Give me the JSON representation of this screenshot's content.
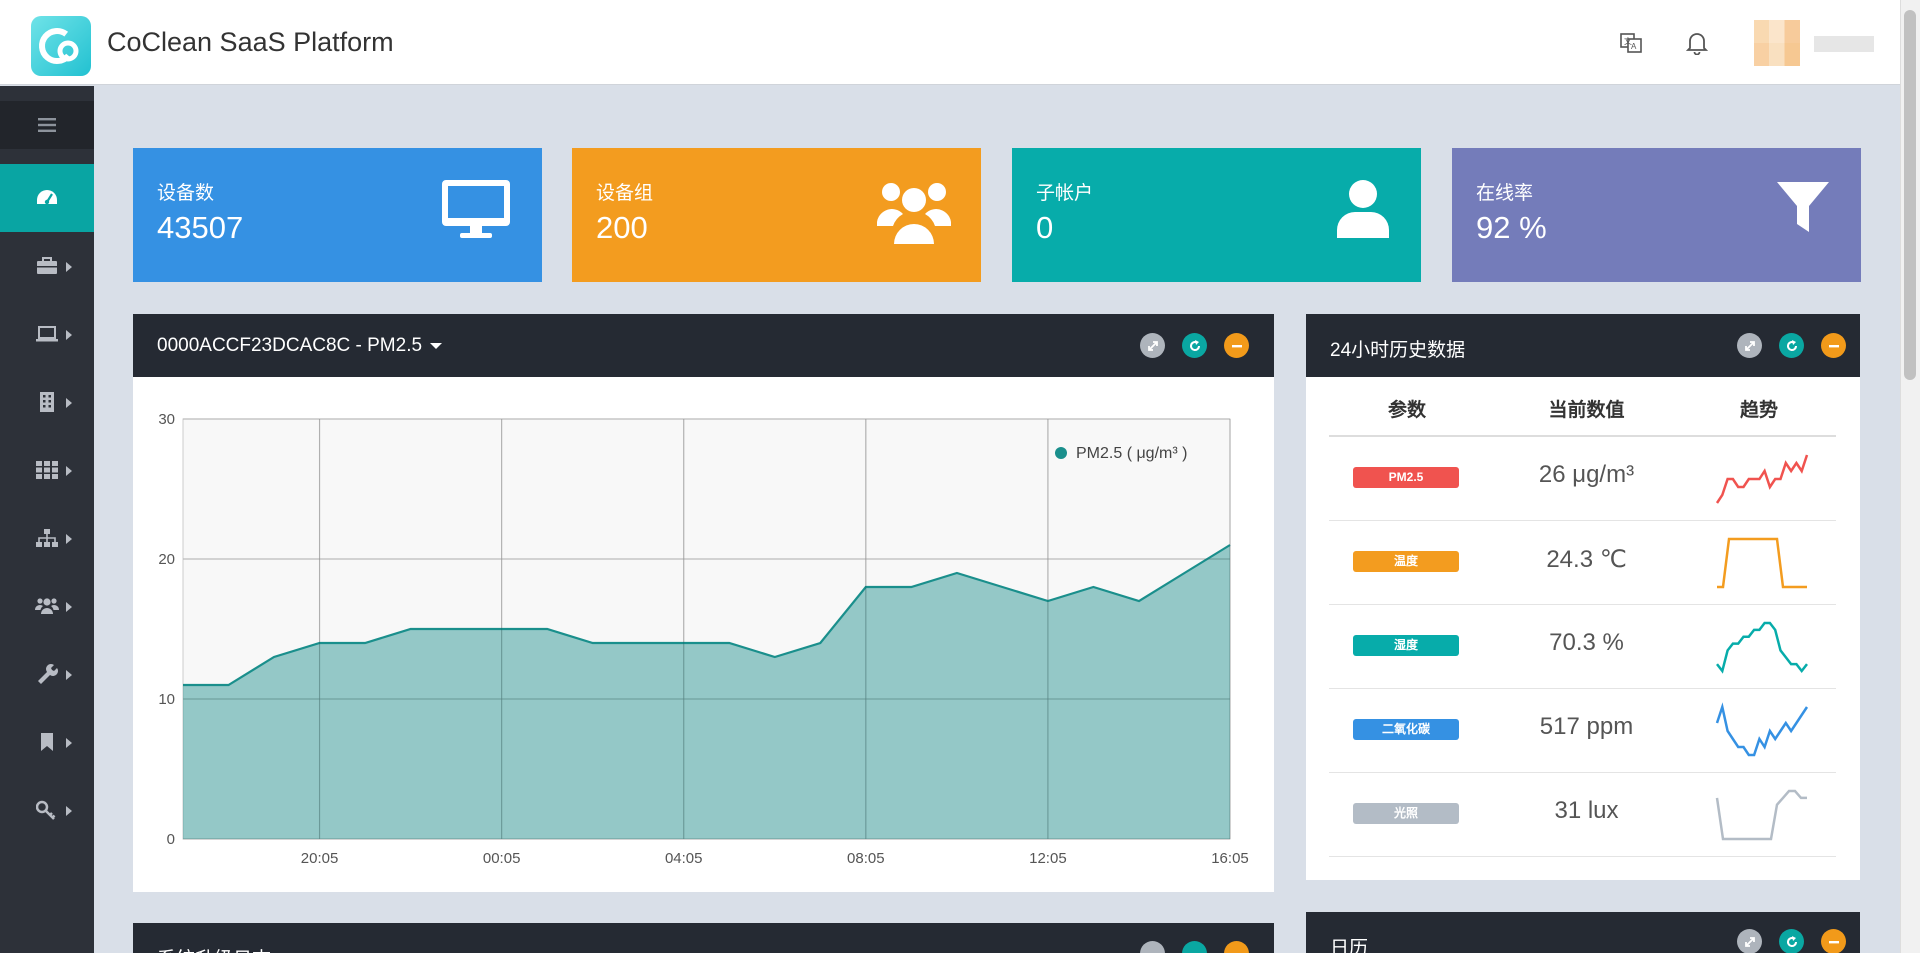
{
  "header": {
    "app_title": "CoClean SaaS Platform",
    "translate_icon": "translate-icon",
    "bell_icon": "bell-icon"
  },
  "sidebar": {
    "toggle_icon": "menu-icon",
    "items": [
      {
        "icon": "dashboard-icon",
        "active": true
      },
      {
        "icon": "briefcase-icon"
      },
      {
        "icon": "laptop-icon"
      },
      {
        "icon": "building-icon"
      },
      {
        "icon": "grid-icon"
      },
      {
        "icon": "sitemap-icon"
      },
      {
        "icon": "users-icon"
      },
      {
        "icon": "wrench-icon"
      },
      {
        "icon": "bookmark-icon"
      },
      {
        "icon": "key-icon"
      }
    ]
  },
  "stats": [
    {
      "label": "设备数",
      "value": "43507",
      "color": "#3591e3",
      "icon": "monitor-icon"
    },
    {
      "label": "设备组",
      "value": "200",
      "color": "#f39c1f",
      "icon": "users-icon"
    },
    {
      "label": "子帐户",
      "value": "0",
      "color": "#07acaa",
      "icon": "user-icon"
    },
    {
      "label": "在线率",
      "value": "92 %",
      "color": "#747cba",
      "icon": "filter-icon"
    }
  ],
  "chart_panel": {
    "title": "0000ACCF23DCAC8C - PM2.5"
  },
  "chart_data": {
    "type": "area",
    "title": "",
    "legend": [
      "PM2.5 ( μg/m³ )"
    ],
    "legend_position": "top-right",
    "xticks": [
      "20:05",
      "00:05",
      "04:05",
      "08:05",
      "12:05",
      "16:05"
    ],
    "yticks": [
      "0",
      "10",
      "20",
      "30"
    ],
    "ylim": [
      0,
      30
    ],
    "grid": true,
    "color": "#1a8f8c",
    "x": [
      0,
      1,
      2,
      3,
      4,
      5,
      6,
      7,
      8,
      9,
      10,
      11,
      12,
      13,
      14,
      15,
      16,
      17,
      18,
      19,
      20,
      21,
      22,
      23
    ],
    "values": [
      11,
      11,
      13,
      14,
      14,
      15,
      15,
      15,
      15,
      14,
      14,
      14,
      14,
      13,
      14,
      18,
      18,
      19,
      18,
      17,
      18,
      17,
      19,
      21
    ]
  },
  "history_panel": {
    "title": "24小时历史数据",
    "col_param": "参数",
    "col_value": "当前数值",
    "col_trend": "趋势",
    "rows": [
      {
        "param": "PM2.5",
        "value": "26 μg/m³",
        "color": "#f0534f",
        "spark": [
          3,
          4,
          6,
          6,
          5,
          5,
          6,
          6,
          6,
          7,
          5,
          6,
          6,
          8,
          7,
          8,
          7,
          9
        ]
      },
      {
        "param": "温度",
        "value": "24.3 ℃",
        "color": "#f39c1f",
        "spark": [
          1,
          1,
          5,
          5,
          5,
          5,
          5,
          5,
          5,
          5,
          5,
          1,
          1,
          1,
          1,
          1
        ]
      },
      {
        "param": "湿度",
        "value": "70.3 %",
        "color": "#07acaa",
        "spark": [
          3,
          2,
          5,
          6,
          6,
          7,
          7,
          8,
          8,
          9,
          9,
          8,
          5,
          4,
          3,
          3,
          2,
          3
        ]
      },
      {
        "param": "二氧化碳",
        "value": "517 ppm",
        "color": "#3591e3",
        "spark": [
          6,
          8,
          5,
          4,
          3,
          3,
          2,
          2,
          4,
          3,
          5,
          4,
          5,
          6,
          5,
          6,
          7,
          8
        ]
      },
      {
        "param": "光照",
        "value": "31 lux",
        "color": "#b3bcc6",
        "spark": [
          7,
          1,
          1,
          1,
          1,
          1,
          1,
          1,
          1,
          1,
          6,
          7,
          8,
          8,
          7,
          7
        ]
      }
    ]
  },
  "bottom_left_panel": {
    "title": "系统升级日志"
  },
  "calendar_panel": {
    "title": "日历"
  }
}
